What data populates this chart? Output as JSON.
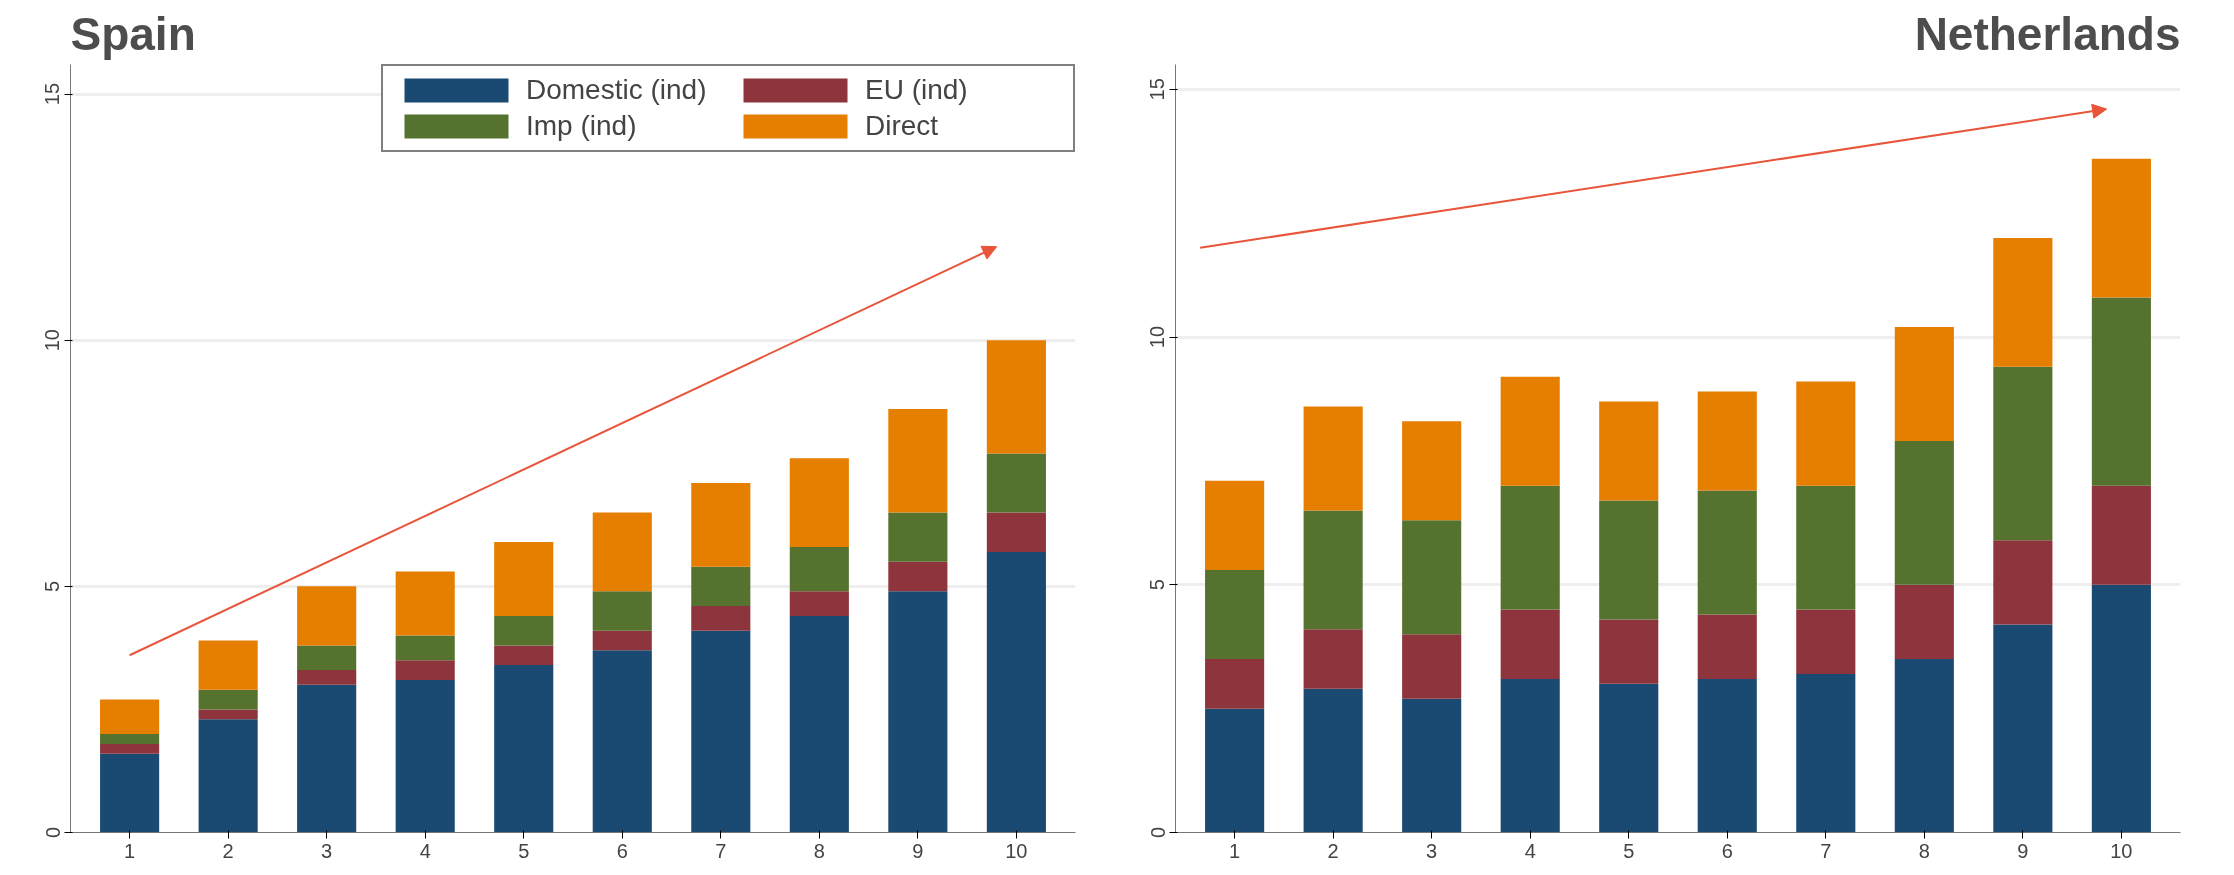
{
  "chart_data": [
    {
      "type": "bar",
      "title": "Spain",
      "stacked": true,
      "categories": [
        "1",
        "2",
        "3",
        "4",
        "5",
        "6",
        "7",
        "8",
        "9",
        "10"
      ],
      "ylim": [
        0,
        15.6
      ],
      "yticks": [
        0,
        5,
        10,
        15
      ],
      "grid": "y",
      "legend": "top right",
      "series": [
        {
          "name": "Domestic (ind)",
          "color": "#1a4a72",
          "values": [
            1.6,
            2.3,
            3.0,
            3.1,
            3.4,
            3.7,
            4.1,
            4.4,
            4.9,
            5.7
          ]
        },
        {
          "name": "EU (ind)",
          "color": "#8e343c",
          "values": [
            0.2,
            0.2,
            0.3,
            0.4,
            0.4,
            0.4,
            0.5,
            0.5,
            0.6,
            0.8
          ]
        },
        {
          "name": "Imp (ind)",
          "color": "#55732f",
          "values": [
            0.2,
            0.4,
            0.5,
            0.5,
            0.6,
            0.8,
            0.8,
            0.9,
            1.0,
            1.2
          ]
        },
        {
          "name": "Direct",
          "color": "#e67e00",
          "values": [
            0.7,
            1.0,
            1.2,
            1.3,
            1.5,
            1.6,
            1.7,
            1.8,
            2.1,
            2.3
          ]
        }
      ]
    },
    {
      "type": "bar",
      "title": "Netherlands",
      "stacked": true,
      "categories": [
        "1",
        "2",
        "3",
        "4",
        "5",
        "6",
        "7",
        "8",
        "9",
        "10"
      ],
      "ylim": [
        0,
        15.5
      ],
      "yticks": [
        0,
        5,
        10,
        15
      ],
      "grid": "y",
      "series": [
        {
          "color": "#1a4a72",
          "values": [
            2.5,
            2.9,
            2.7,
            3.1,
            3.0,
            3.1,
            3.2,
            3.5,
            4.2,
            5.0
          ]
        },
        {
          "color": "#8e343c",
          "values": [
            1.0,
            1.2,
            1.3,
            1.4,
            1.3,
            1.3,
            1.3,
            1.5,
            1.7,
            2.0
          ]
        },
        {
          "color": "#55732f",
          "values": [
            1.8,
            2.4,
            2.3,
            2.5,
            2.4,
            2.5,
            2.5,
            2.9,
            3.5,
            3.8
          ]
        },
        {
          "color": "#e67e00",
          "values": [
            1.8,
            2.1,
            2.0,
            2.2,
            2.0,
            2.0,
            2.1,
            2.3,
            2.6,
            2.8
          ]
        }
      ]
    }
  ]
}
